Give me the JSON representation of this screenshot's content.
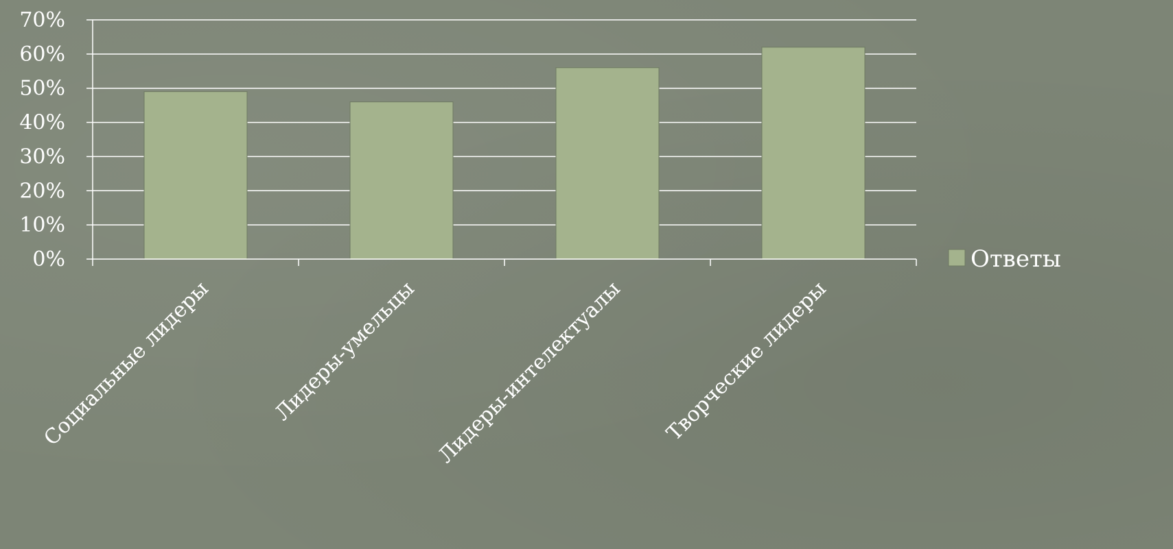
{
  "chart_data": {
    "type": "bar",
    "categories": [
      "Социальные лидеры",
      "Лидеры-умельцы",
      "Лидеры-интелектуалы",
      "Творческие лидеры"
    ],
    "series": [
      {
        "name": "Ответы",
        "values": [
          49,
          46,
          56,
          62
        ]
      }
    ],
    "ylim": [
      0,
      70
    ],
    "yticks": [
      "0%",
      "10%",
      "20%",
      "30%",
      "40%",
      "50%",
      "60%",
      "70%"
    ],
    "grid": true,
    "legend": "right",
    "colors": {
      "bar": "#a4b38d",
      "bar_edge": "#6e7a62",
      "grid": "#ffffff",
      "text": "#ffffff",
      "background": "#7d8576"
    }
  }
}
